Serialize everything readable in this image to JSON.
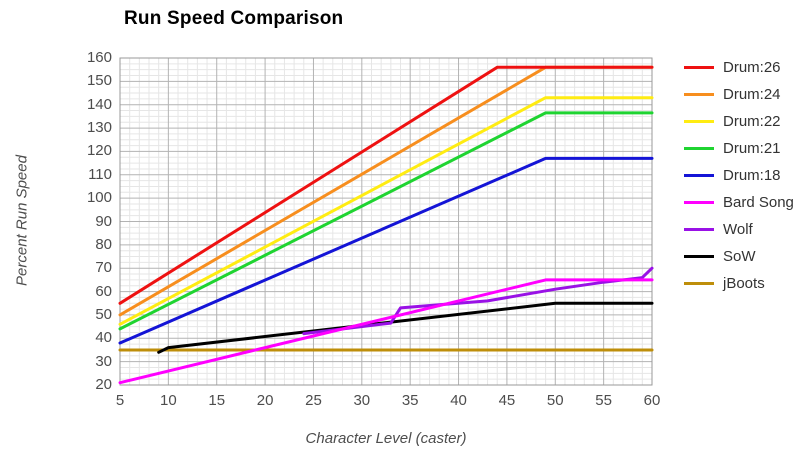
{
  "title": "Run Speed Comparison",
  "axes": {
    "x_label": "Character Level (caster)",
    "y_label": "Percent Run Speed",
    "x_ticks": [
      5,
      10,
      15,
      20,
      25,
      30,
      35,
      40,
      45,
      50,
      55,
      60
    ],
    "y_ticks": [
      160,
      150,
      140,
      130,
      120,
      110,
      100,
      90,
      80,
      70,
      60,
      50,
      40,
      30,
      20
    ],
    "x_range": [
      5,
      60
    ],
    "y_range": [
      20,
      160
    ]
  },
  "chart_data": {
    "type": "line",
    "title": "Run Speed Comparison",
    "xlabel": "Character Level (caster)",
    "ylabel": "Percent Run Speed",
    "xlim": [
      5,
      60
    ],
    "ylim": [
      20,
      160
    ],
    "grid": true,
    "minor_grid_step_x": 1,
    "minor_grid_step_y": 2.5,
    "legend_position": "right",
    "levels_sampled": [
      5,
      10,
      15,
      20,
      25,
      30,
      35,
      40,
      45,
      50,
      55,
      60
    ],
    "series": [
      {
        "name": "Drum:26",
        "color": "#ee1111",
        "values_at_levels": [
          55,
          68,
          81,
          94,
          107,
          120,
          133,
          146,
          156,
          156,
          156,
          156
        ],
        "points": [
          [
            5,
            55
          ],
          [
            44,
            156
          ],
          [
            60,
            156
          ]
        ]
      },
      {
        "name": "Drum:24",
        "color": "#f78e1e",
        "values_at_levels": [
          50,
          62,
          74,
          86,
          98,
          110,
          122,
          134,
          146,
          156,
          156,
          156
        ],
        "points": [
          [
            5,
            50
          ],
          [
            49,
            156
          ],
          [
            60,
            156
          ]
        ]
      },
      {
        "name": "Drum:22",
        "color": "#ffec12",
        "values_at_levels": [
          46,
          57,
          68,
          79,
          90,
          101,
          112,
          123,
          134,
          143,
          143,
          143
        ],
        "points": [
          [
            5,
            46
          ],
          [
            49,
            143
          ],
          [
            60,
            143
          ]
        ]
      },
      {
        "name": "Drum:21",
        "color": "#1fd431",
        "values_at_levels": [
          44,
          55,
          65,
          76,
          86,
          97,
          107,
          118,
          128,
          136,
          136,
          136
        ],
        "points": [
          [
            5,
            44
          ],
          [
            49,
            136.5
          ],
          [
            60,
            136.5
          ]
        ]
      },
      {
        "name": "Drum:18",
        "color": "#1414d6",
        "values_at_levels": [
          38,
          47,
          56,
          65,
          74,
          83,
          92,
          101,
          110,
          117,
          117,
          117
        ],
        "points": [
          [
            5,
            38
          ],
          [
            49,
            117
          ],
          [
            60,
            117
          ]
        ]
      },
      {
        "name": "Bard Song",
        "color": "#ff00ff",
        "values_at_levels": [
          21,
          26,
          31,
          36,
          41,
          46,
          51,
          56,
          61,
          65,
          65,
          65
        ],
        "points": [
          [
            5,
            21
          ],
          [
            49,
            65
          ],
          [
            60,
            65
          ]
        ]
      },
      {
        "name": "Wolf",
        "color": "#9911e6",
        "values_at_levels": [
          null,
          null,
          null,
          null,
          43,
          45,
          53,
          55,
          57,
          61,
          64,
          70
        ],
        "points": [
          [
            24,
            42
          ],
          [
            33,
            46.5
          ],
          [
            34,
            53
          ],
          [
            43,
            56
          ],
          [
            50,
            61
          ],
          [
            55,
            64
          ],
          [
            59,
            66
          ],
          [
            60,
            70
          ]
        ]
      },
      {
        "name": "SoW",
        "color": "#000000",
        "values_at_levels": [
          null,
          36,
          38,
          41,
          43,
          45,
          48,
          50,
          53,
          55,
          55,
          55
        ],
        "points": [
          [
            9,
            34
          ],
          [
            10,
            36
          ],
          [
            50,
            55
          ],
          [
            60,
            55
          ]
        ]
      },
      {
        "name": "jBoots",
        "color": "#be8e0a",
        "values_at_levels": [
          35,
          35,
          35,
          35,
          35,
          35,
          35,
          35,
          35,
          35,
          35,
          35
        ],
        "points": [
          [
            5,
            35
          ],
          [
            60,
            35
          ]
        ]
      }
    ]
  },
  "style": {
    "major_grid_color": "#b3b3b3",
    "minor_grid_color": "#e6e6e6",
    "plot_border_color": "#999999",
    "background": "#ffffff",
    "line_width": 3
  }
}
